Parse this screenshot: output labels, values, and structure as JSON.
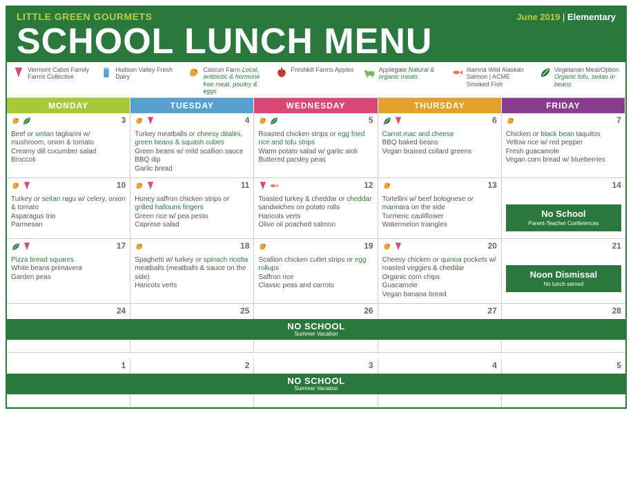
{
  "header": {
    "brand": "LITTLE GREEN GOURMETS",
    "month": "June 2019",
    "sep": " | ",
    "level": "Elementary",
    "title": "SCHOOL LUNCH MENU"
  },
  "colors": {
    "brand_green": "#2a783e",
    "lime": "#b9d23b",
    "mon": "#a6c93a",
    "tue": "#56a1cf",
    "wed": "#d64a75",
    "thu": "#e2a02e",
    "fri": "#8a3d8f"
  },
  "legend": [
    {
      "icon": "vt",
      "text": "Vermont Cabot Family Farms Collective",
      "em": ""
    },
    {
      "icon": "milk",
      "text": "Hudson Valley Fresh Dairy",
      "em": ""
    },
    {
      "icon": "chicken",
      "text": "Cascun Farm ",
      "em": "Local, antibiotic & hormone free meat, poultry & eggs"
    },
    {
      "icon": "apple",
      "text": "Freshkill Farms Apples",
      "em": ""
    },
    {
      "icon": "cow",
      "text": "Applegate ",
      "em": "Natural & organic meats"
    },
    {
      "icon": "fish",
      "text": "Iliamna Wild Alaskan Salmon | ACME Smoked Fish",
      "em": ""
    },
    {
      "icon": "leaf",
      "text": "Vegetarian Meal/Option ",
      "em": "Organic tofu, seitan or beans"
    }
  ],
  "days": [
    "MONDAY",
    "TUESDAY",
    "WEDNESDAY",
    "THURSDAY",
    "FRIDAY"
  ],
  "weeks": [
    [
      {
        "num": "3",
        "icons": [
          "chicken",
          "leaf"
        ],
        "lines": [
          {
            "t": "Beef ",
            "or": "or",
            "g": " seitan",
            "r": " tagliarini w/ mushroom, onion & tomato"
          },
          {
            "t": "Creamy dill cucumber salad"
          },
          {
            "t": "Broccoli"
          }
        ]
      },
      {
        "num": "4",
        "icons": [
          "chicken",
          "vt"
        ],
        "lines": [
          {
            "t": "Turkey meatballs ",
            "or": "or",
            "g": " cheesy ditalini, green beans & squash cubes"
          },
          {
            "t": "Green beans w/ mild scallion sauce"
          },
          {
            "t": "BBQ dip"
          },
          {
            "t": "Garlic bread"
          }
        ]
      },
      {
        "num": "5",
        "icons": [
          "chicken",
          "leaf"
        ],
        "lines": [
          {
            "t": "Roasted chicken strips ",
            "or": "or",
            "g": " egg fried rice and tofu strips"
          },
          {
            "t": "Warm potato salad w/ garlic aioli"
          },
          {
            "t": "Buttered parsley peas"
          }
        ]
      },
      {
        "num": "6",
        "icons": [
          "leaf",
          "vt"
        ],
        "lines": [
          {
            "g": "Carrot mac and cheese"
          },
          {
            "t": "BBQ baked beans"
          },
          {
            "t": "Vegan braised collard greens"
          }
        ]
      },
      {
        "num": "7",
        "icons": [
          "chicken"
        ],
        "lines": [
          {
            "t": "Chicken ",
            "or": "or",
            "g": " black bean",
            "r": " taquitos"
          },
          {
            "t": "Yellow rice w/ red pepper"
          },
          {
            "t": "Fresh guacamole"
          },
          {
            "t": "Vegan corn bread w/ blueberries"
          }
        ]
      }
    ],
    [
      {
        "num": "10",
        "icons": [
          "chicken",
          "vt"
        ],
        "lines": [
          {
            "t": "Turkey ",
            "or": "or",
            "g": " seitan",
            "r": " ragu w/ celery, onion & tomato"
          },
          {
            "t": "Asparagus trio"
          },
          {
            "t": "Parmesan"
          }
        ]
      },
      {
        "num": "11",
        "icons": [
          "chicken",
          "vt"
        ],
        "lines": [
          {
            "t": "Honey saffron chicken strips ",
            "or": "or",
            "g": " grilled halloumi fingers"
          },
          {
            "t": "Green rice w/ pea pesto"
          },
          {
            "t": "Caprese salad"
          }
        ]
      },
      {
        "num": "12",
        "icons": [
          "vt",
          "fish"
        ],
        "lines": [
          {
            "t": "Toasted turkey & cheddar ",
            "or": "or",
            "g": " cheddar",
            "r": " sandwiches on potato rolls"
          },
          {
            "t": "Haricots verts"
          },
          {
            "t": "Olive oil poached salmon"
          }
        ]
      },
      {
        "num": "13",
        "icons": [
          "chicken"
        ],
        "lines": [
          {
            "t": "Tortellini w/ beef bolognese ",
            "or": "or",
            "g": " marinara",
            "r": " on the side"
          },
          {
            "t": "Turmeric cauliflower"
          },
          {
            "t": "Watermelon triangles"
          }
        ]
      },
      {
        "num": "14",
        "icons": [],
        "special": {
          "title": "No School",
          "sub": "Parent-Teacher Conferences"
        }
      }
    ],
    [
      {
        "num": "17",
        "icons": [
          "leaf",
          "vt"
        ],
        "lines": [
          {
            "g": "Pizza bread squares"
          },
          {
            "t": "White beans primavera"
          },
          {
            "t": "Garden peas"
          }
        ]
      },
      {
        "num": "18",
        "icons": [
          "chicken"
        ],
        "lines": [
          {
            "t": "Spaghetti w/ turkey ",
            "or": "or",
            "g": " spinach ricotta",
            "r": " meatballs (meatballs & sauce on the side)"
          },
          {
            "t": "Haricots verts"
          }
        ]
      },
      {
        "num": "19",
        "icons": [
          "chicken"
        ],
        "lines": [
          {
            "t": "Scallion chicken cutlet strips ",
            "or": "or",
            "g": " egg rollups"
          },
          {
            "t": "Saffron rice"
          },
          {
            "t": "Classic peas and carrots"
          }
        ]
      },
      {
        "num": "20",
        "icons": [
          "chicken",
          "vt"
        ],
        "lines": [
          {
            "t": "Cheesy chicken ",
            "or": "or",
            "g": " quinoa",
            "r": " pockets w/ roasted veggies & cheddar"
          },
          {
            "t": "Organic corn chips"
          },
          {
            "t": "Guacamole"
          },
          {
            "t": "Vegan banana bread"
          }
        ]
      },
      {
        "num": "21",
        "icons": [],
        "special": {
          "title": "Noon Dismissal",
          "sub": "No lunch served"
        }
      }
    ]
  ],
  "banners": [
    {
      "nums": [
        "24",
        "25",
        "26",
        "27",
        "28"
      ],
      "title": "NO SCHOOL",
      "sub": "Summer Vacation"
    },
    {
      "nums": [
        "1",
        "2",
        "3",
        "4",
        "5"
      ],
      "title": "NO SCHOOL",
      "sub": "Summer Vacation"
    }
  ]
}
